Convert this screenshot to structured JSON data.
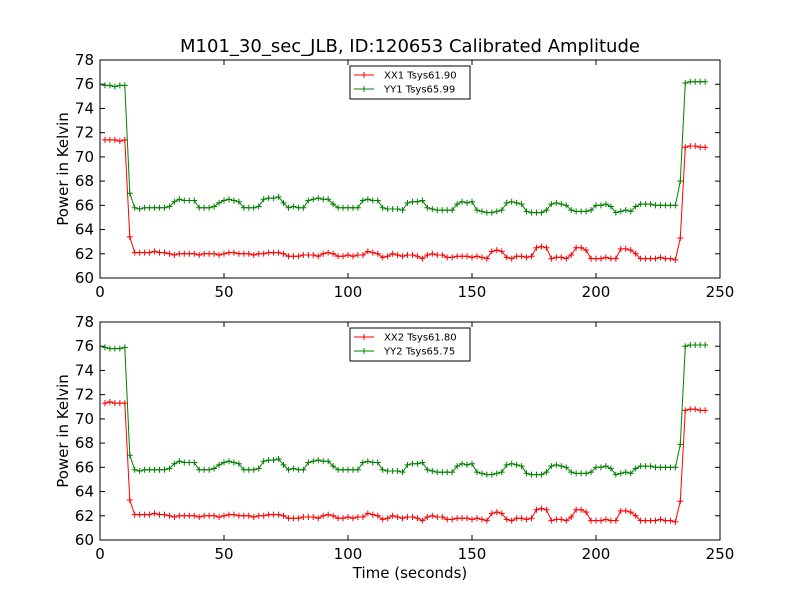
{
  "chart_data": [
    {
      "type": "line",
      "title": "M101_30_sec_JLB, ID:120653 Calibrated Amplitude",
      "xlabel": "",
      "ylabel": "Power in Kelvin",
      "xlim": [
        0,
        250
      ],
      "ylim": [
        60,
        78
      ],
      "xticks": [
        0,
        50,
        100,
        150,
        200,
        250
      ],
      "yticks": [
        60,
        62,
        64,
        66,
        68,
        70,
        72,
        74,
        76,
        78
      ],
      "grid": false,
      "legend_position": "top-center",
      "series": [
        {
          "name": "XX1 Tsys61.90",
          "color": "#ff0000",
          "x": [
            2,
            4,
            6,
            8,
            10,
            12,
            14,
            16,
            18,
            20,
            22,
            24,
            26,
            28,
            30,
            32,
            34,
            36,
            38,
            40,
            42,
            44,
            46,
            48,
            50,
            52,
            54,
            56,
            58,
            60,
            62,
            64,
            66,
            68,
            70,
            72,
            74,
            76,
            78,
            80,
            82,
            84,
            86,
            88,
            90,
            92,
            94,
            96,
            98,
            100,
            102,
            104,
            106,
            108,
            110,
            112,
            114,
            116,
            118,
            120,
            122,
            124,
            126,
            128,
            130,
            132,
            134,
            136,
            138,
            140,
            142,
            144,
            146,
            148,
            150,
            152,
            154,
            156,
            158,
            160,
            162,
            164,
            166,
            168,
            170,
            172,
            174,
            176,
            178,
            180,
            182,
            184,
            186,
            188,
            190,
            192,
            194,
            196,
            198,
            200,
            202,
            204,
            206,
            208,
            210,
            212,
            214,
            216,
            218,
            220,
            222,
            224,
            226,
            228,
            230,
            232,
            234,
            236,
            238,
            240,
            242,
            244
          ],
          "y": [
            71.4,
            71.4,
            71.4,
            71.3,
            71.4,
            63.4,
            62.1,
            62.1,
            62.1,
            62.1,
            62.2,
            62.1,
            62.1,
            62.0,
            61.9,
            62.0,
            62.0,
            62.0,
            62.0,
            61.9,
            62.0,
            62.0,
            62.0,
            61.9,
            62.0,
            62.1,
            62.1,
            62.0,
            62.0,
            62.0,
            61.9,
            62.0,
            62.0,
            62.1,
            62.1,
            62.1,
            62.0,
            61.8,
            61.8,
            61.8,
            61.9,
            61.9,
            61.9,
            61.8,
            62.0,
            62.1,
            62.0,
            61.8,
            61.8,
            61.9,
            61.8,
            61.9,
            61.9,
            62.2,
            62.1,
            62.0,
            61.7,
            61.8,
            62.0,
            61.9,
            61.8,
            61.9,
            61.9,
            61.8,
            61.6,
            61.9,
            62.0,
            61.9,
            61.9,
            61.7,
            61.7,
            61.8,
            61.8,
            61.8,
            61.7,
            61.8,
            61.7,
            61.6,
            62.2,
            62.3,
            62.2,
            61.7,
            61.6,
            61.8,
            61.8,
            61.7,
            61.8,
            62.5,
            62.6,
            62.5,
            61.6,
            61.7,
            61.7,
            61.6,
            61.9,
            62.5,
            62.5,
            62.3,
            61.6,
            61.6,
            61.6,
            61.7,
            61.6,
            61.6,
            62.4,
            62.4,
            62.3,
            62.0,
            61.6,
            61.6,
            61.6,
            61.6,
            61.7,
            61.6,
            61.6,
            61.5,
            63.3,
            70.8,
            70.9,
            70.9,
            70.8,
            70.8
          ]
        },
        {
          "name": "YY1 Tsys65.99",
          "color": "#008000",
          "x": [
            2,
            4,
            6,
            8,
            10,
            12,
            14,
            16,
            18,
            20,
            22,
            24,
            26,
            28,
            30,
            32,
            34,
            36,
            38,
            40,
            42,
            44,
            46,
            48,
            50,
            52,
            54,
            56,
            58,
            60,
            62,
            64,
            66,
            68,
            70,
            72,
            74,
            76,
            78,
            80,
            82,
            84,
            86,
            88,
            90,
            92,
            94,
            96,
            98,
            100,
            102,
            104,
            106,
            108,
            110,
            112,
            114,
            116,
            118,
            120,
            122,
            124,
            126,
            128,
            130,
            132,
            134,
            136,
            138,
            140,
            142,
            144,
            146,
            148,
            150,
            152,
            154,
            156,
            158,
            160,
            162,
            164,
            166,
            168,
            170,
            172,
            174,
            176,
            178,
            180,
            182,
            184,
            186,
            188,
            190,
            192,
            194,
            196,
            198,
            200,
            202,
            204,
            206,
            208,
            210,
            212,
            214,
            216,
            218,
            220,
            222,
            224,
            226,
            228,
            230,
            232,
            234,
            236,
            238,
            240,
            242,
            244
          ],
          "y": [
            75.9,
            75.9,
            75.8,
            75.9,
            75.9,
            67.0,
            65.8,
            65.7,
            65.8,
            65.8,
            65.8,
            65.8,
            65.8,
            65.9,
            66.3,
            66.5,
            66.4,
            66.4,
            66.4,
            65.8,
            65.8,
            65.8,
            65.9,
            66.2,
            66.4,
            66.5,
            66.4,
            66.3,
            65.8,
            65.8,
            65.8,
            65.9,
            66.5,
            66.6,
            66.6,
            66.7,
            66.2,
            65.8,
            65.9,
            65.8,
            65.8,
            66.4,
            66.5,
            66.6,
            66.5,
            66.5,
            66.1,
            65.8,
            65.8,
            65.8,
            65.8,
            65.8,
            66.4,
            66.5,
            66.4,
            66.4,
            65.8,
            65.7,
            65.7,
            65.7,
            65.6,
            66.2,
            66.3,
            66.3,
            66.4,
            65.8,
            65.7,
            65.6,
            65.6,
            65.6,
            65.6,
            66.1,
            66.3,
            66.2,
            66.3,
            65.6,
            65.5,
            65.4,
            65.4,
            65.5,
            65.6,
            66.2,
            66.3,
            66.2,
            66.1,
            65.5,
            65.4,
            65.4,
            65.4,
            65.6,
            66.1,
            66.2,
            66.1,
            66.0,
            65.6,
            65.5,
            65.5,
            65.5,
            65.6,
            66.0,
            66.0,
            66.1,
            65.9,
            65.4,
            65.5,
            65.6,
            65.5,
            65.9,
            66.1,
            66.1,
            66.1,
            66.0,
            66.0,
            66.0,
            66.0,
            66.0,
            68.0,
            76.1,
            76.2,
            76.2,
            76.2,
            76.2
          ]
        }
      ]
    },
    {
      "type": "line",
      "title": "",
      "xlabel": "Time (seconds)",
      "ylabel": "Power in Kelvin",
      "xlim": [
        0,
        250
      ],
      "ylim": [
        60,
        78
      ],
      "xticks": [
        0,
        50,
        100,
        150,
        200,
        250
      ],
      "yticks": [
        60,
        62,
        64,
        66,
        68,
        70,
        72,
        74,
        76,
        78
      ],
      "grid": false,
      "legend_position": "top-center",
      "series": [
        {
          "name": "XX2 Tsys61.80",
          "color": "#ff0000",
          "x": [
            2,
            4,
            6,
            8,
            10,
            12,
            14,
            16,
            18,
            20,
            22,
            24,
            26,
            28,
            30,
            32,
            34,
            36,
            38,
            40,
            42,
            44,
            46,
            48,
            50,
            52,
            54,
            56,
            58,
            60,
            62,
            64,
            66,
            68,
            70,
            72,
            74,
            76,
            78,
            80,
            82,
            84,
            86,
            88,
            90,
            92,
            94,
            96,
            98,
            100,
            102,
            104,
            106,
            108,
            110,
            112,
            114,
            116,
            118,
            120,
            122,
            124,
            126,
            128,
            130,
            132,
            134,
            136,
            138,
            140,
            142,
            144,
            146,
            148,
            150,
            152,
            154,
            156,
            158,
            160,
            162,
            164,
            166,
            168,
            170,
            172,
            174,
            176,
            178,
            180,
            182,
            184,
            186,
            188,
            190,
            192,
            194,
            196,
            198,
            200,
            202,
            204,
            206,
            208,
            210,
            212,
            214,
            216,
            218,
            220,
            222,
            224,
            226,
            228,
            230,
            232,
            234,
            236,
            238,
            240,
            242,
            244
          ],
          "y": [
            71.3,
            71.4,
            71.3,
            71.3,
            71.3,
            63.3,
            62.1,
            62.1,
            62.1,
            62.1,
            62.2,
            62.1,
            62.1,
            62.0,
            61.9,
            62.0,
            62.0,
            62.0,
            62.0,
            61.9,
            62.0,
            62.0,
            62.0,
            61.9,
            62.0,
            62.1,
            62.1,
            62.0,
            62.0,
            62.0,
            61.9,
            62.0,
            62.0,
            62.1,
            62.1,
            62.1,
            62.0,
            61.8,
            61.8,
            61.8,
            61.9,
            61.9,
            61.9,
            61.8,
            62.0,
            62.1,
            62.0,
            61.8,
            61.8,
            61.9,
            61.8,
            61.9,
            61.9,
            62.2,
            62.1,
            62.0,
            61.7,
            61.8,
            62.0,
            61.9,
            61.8,
            61.9,
            61.9,
            61.8,
            61.6,
            61.9,
            62.0,
            61.9,
            61.9,
            61.7,
            61.7,
            61.8,
            61.8,
            61.8,
            61.7,
            61.8,
            61.7,
            61.6,
            62.2,
            62.3,
            62.2,
            61.7,
            61.6,
            61.8,
            61.8,
            61.7,
            61.8,
            62.5,
            62.6,
            62.5,
            61.6,
            61.7,
            61.7,
            61.6,
            61.9,
            62.5,
            62.5,
            62.3,
            61.6,
            61.6,
            61.6,
            61.7,
            61.6,
            61.6,
            62.4,
            62.4,
            62.3,
            62.0,
            61.6,
            61.6,
            61.6,
            61.6,
            61.7,
            61.6,
            61.6,
            61.5,
            63.2,
            70.7,
            70.8,
            70.8,
            70.7,
            70.7
          ]
        },
        {
          "name": "YY2 Tsys65.75",
          "color": "#008000",
          "x": [
            2,
            4,
            6,
            8,
            10,
            12,
            14,
            16,
            18,
            20,
            22,
            24,
            26,
            28,
            30,
            32,
            34,
            36,
            38,
            40,
            42,
            44,
            46,
            48,
            50,
            52,
            54,
            56,
            58,
            60,
            62,
            64,
            66,
            68,
            70,
            72,
            74,
            76,
            78,
            80,
            82,
            84,
            86,
            88,
            90,
            92,
            94,
            96,
            98,
            100,
            102,
            104,
            106,
            108,
            110,
            112,
            114,
            116,
            118,
            120,
            122,
            124,
            126,
            128,
            130,
            132,
            134,
            136,
            138,
            140,
            142,
            144,
            146,
            148,
            150,
            152,
            154,
            156,
            158,
            160,
            162,
            164,
            166,
            168,
            170,
            172,
            174,
            176,
            178,
            180,
            182,
            184,
            186,
            188,
            190,
            192,
            194,
            196,
            198,
            200,
            202,
            204,
            206,
            208,
            210,
            212,
            214,
            216,
            218,
            220,
            222,
            224,
            226,
            228,
            230,
            232,
            234,
            236,
            238,
            240,
            242,
            244
          ],
          "y": [
            75.9,
            75.8,
            75.8,
            75.8,
            75.9,
            67.0,
            65.8,
            65.7,
            65.8,
            65.8,
            65.8,
            65.8,
            65.8,
            65.9,
            66.3,
            66.5,
            66.4,
            66.4,
            66.4,
            65.8,
            65.8,
            65.8,
            65.9,
            66.2,
            66.4,
            66.5,
            66.4,
            66.3,
            65.8,
            65.8,
            65.8,
            65.9,
            66.5,
            66.6,
            66.6,
            66.7,
            66.2,
            65.8,
            65.9,
            65.8,
            65.8,
            66.4,
            66.5,
            66.6,
            66.5,
            66.5,
            66.1,
            65.8,
            65.8,
            65.8,
            65.8,
            65.8,
            66.4,
            66.5,
            66.4,
            66.4,
            65.8,
            65.7,
            65.7,
            65.7,
            65.6,
            66.2,
            66.3,
            66.3,
            66.4,
            65.8,
            65.7,
            65.6,
            65.6,
            65.6,
            65.6,
            66.1,
            66.3,
            66.2,
            66.3,
            65.6,
            65.5,
            65.4,
            65.4,
            65.5,
            65.6,
            66.2,
            66.3,
            66.2,
            66.1,
            65.5,
            65.4,
            65.4,
            65.4,
            65.6,
            66.1,
            66.2,
            66.1,
            66.0,
            65.6,
            65.5,
            65.5,
            65.5,
            65.6,
            66.0,
            66.0,
            66.1,
            65.9,
            65.4,
            65.5,
            65.6,
            65.5,
            65.9,
            66.1,
            66.1,
            66.1,
            66.0,
            66.0,
            66.0,
            66.0,
            66.0,
            67.9,
            76.0,
            76.1,
            76.1,
            76.1,
            76.1
          ]
        }
      ]
    }
  ]
}
